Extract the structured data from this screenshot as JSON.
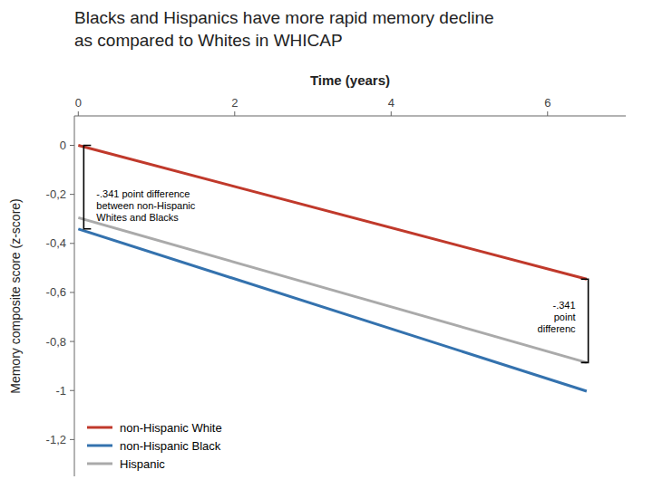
{
  "chart_data": {
    "type": "line",
    "title": "Blacks and Hispanics have more rapid memory decline\nas compared to Whites in WHICAP",
    "xlabel": "Time (years)",
    "ylabel": "Memory composite score (z-score)",
    "x": [
      0,
      6.5
    ],
    "series": [
      {
        "name": "non-Hispanic White",
        "color": "#c0392b",
        "values": [
          0.0,
          -0.546
        ]
      },
      {
        "name": "non-Hispanic Black",
        "color": "#3472ae",
        "values": [
          -0.341,
          -1.003
        ]
      },
      {
        "name": "Hispanic",
        "color": "#aaaaaa",
        "values": [
          -0.295,
          -0.886
        ]
      }
    ],
    "xlim": [
      -0.05,
      7.0
    ],
    "ylim": [
      -1.35,
      0.12
    ],
    "xticks": [
      0,
      2,
      4,
      6
    ],
    "yticks": [
      0,
      {
        "value": -0.2,
        "label": "-0,2"
      },
      {
        "value": -0.4,
        "label": "-0,4"
      },
      {
        "value": -0.6,
        "label": "-0,6"
      },
      {
        "value": -0.8,
        "label": "-0,8"
      },
      -1,
      {
        "value": -1.2,
        "label": "-1,2"
      }
    ],
    "grid": false,
    "legend": "lower left",
    "annotations": [
      {
        "text": "-.341 point difference\nbetween non-Hispanic\nWhites and Blacks",
        "x": 0.07,
        "y": [
          0.0,
          -0.341
        ]
      },
      {
        "text": "-.341\npoint\ndifferenc",
        "x": 6.52,
        "y": [
          -0.546,
          -0.886
        ]
      }
    ]
  }
}
